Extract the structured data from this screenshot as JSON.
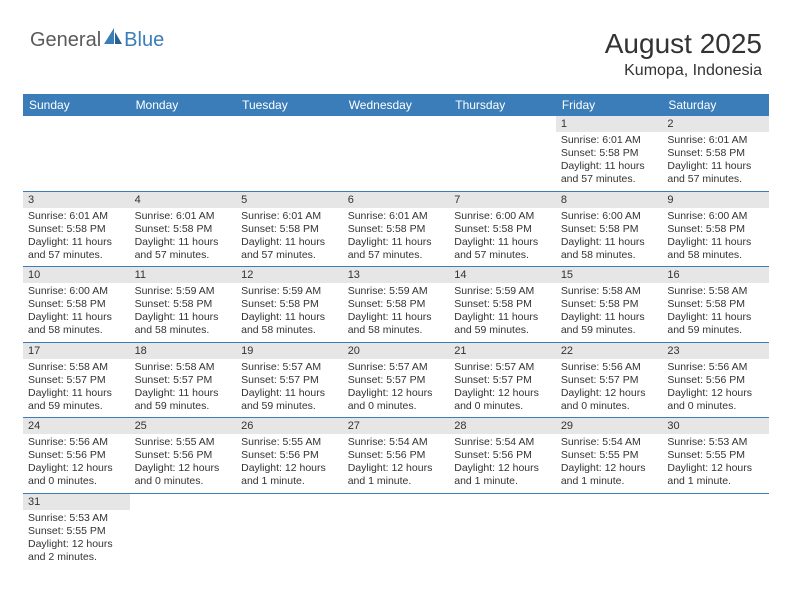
{
  "logo": {
    "part1": "General",
    "part2": "Blue"
  },
  "title": {
    "month": "August 2025",
    "location": "Kumopa, Indonesia"
  },
  "colors": {
    "header_bg": "#3a7db8",
    "header_text": "#ffffff",
    "daynum_bg": "#e6e6e6",
    "border": "#3a7db8",
    "text": "#333333",
    "logo_gray": "#5a5a5a",
    "logo_blue": "#3a7db8"
  },
  "weekdays": [
    "Sunday",
    "Monday",
    "Tuesday",
    "Wednesday",
    "Thursday",
    "Friday",
    "Saturday"
  ],
  "weeks": [
    [
      null,
      null,
      null,
      null,
      null,
      {
        "n": "1",
        "sr": "Sunrise: 6:01 AM",
        "ss": "Sunset: 5:58 PM",
        "dl": "Daylight: 11 hours and 57 minutes."
      },
      {
        "n": "2",
        "sr": "Sunrise: 6:01 AM",
        "ss": "Sunset: 5:58 PM",
        "dl": "Daylight: 11 hours and 57 minutes."
      }
    ],
    [
      {
        "n": "3",
        "sr": "Sunrise: 6:01 AM",
        "ss": "Sunset: 5:58 PM",
        "dl": "Daylight: 11 hours and 57 minutes."
      },
      {
        "n": "4",
        "sr": "Sunrise: 6:01 AM",
        "ss": "Sunset: 5:58 PM",
        "dl": "Daylight: 11 hours and 57 minutes."
      },
      {
        "n": "5",
        "sr": "Sunrise: 6:01 AM",
        "ss": "Sunset: 5:58 PM",
        "dl": "Daylight: 11 hours and 57 minutes."
      },
      {
        "n": "6",
        "sr": "Sunrise: 6:01 AM",
        "ss": "Sunset: 5:58 PM",
        "dl": "Daylight: 11 hours and 57 minutes."
      },
      {
        "n": "7",
        "sr": "Sunrise: 6:00 AM",
        "ss": "Sunset: 5:58 PM",
        "dl": "Daylight: 11 hours and 57 minutes."
      },
      {
        "n": "8",
        "sr": "Sunrise: 6:00 AM",
        "ss": "Sunset: 5:58 PM",
        "dl": "Daylight: 11 hours and 58 minutes."
      },
      {
        "n": "9",
        "sr": "Sunrise: 6:00 AM",
        "ss": "Sunset: 5:58 PM",
        "dl": "Daylight: 11 hours and 58 minutes."
      }
    ],
    [
      {
        "n": "10",
        "sr": "Sunrise: 6:00 AM",
        "ss": "Sunset: 5:58 PM",
        "dl": "Daylight: 11 hours and 58 minutes."
      },
      {
        "n": "11",
        "sr": "Sunrise: 5:59 AM",
        "ss": "Sunset: 5:58 PM",
        "dl": "Daylight: 11 hours and 58 minutes."
      },
      {
        "n": "12",
        "sr": "Sunrise: 5:59 AM",
        "ss": "Sunset: 5:58 PM",
        "dl": "Daylight: 11 hours and 58 minutes."
      },
      {
        "n": "13",
        "sr": "Sunrise: 5:59 AM",
        "ss": "Sunset: 5:58 PM",
        "dl": "Daylight: 11 hours and 58 minutes."
      },
      {
        "n": "14",
        "sr": "Sunrise: 5:59 AM",
        "ss": "Sunset: 5:58 PM",
        "dl": "Daylight: 11 hours and 59 minutes."
      },
      {
        "n": "15",
        "sr": "Sunrise: 5:58 AM",
        "ss": "Sunset: 5:58 PM",
        "dl": "Daylight: 11 hours and 59 minutes."
      },
      {
        "n": "16",
        "sr": "Sunrise: 5:58 AM",
        "ss": "Sunset: 5:58 PM",
        "dl": "Daylight: 11 hours and 59 minutes."
      }
    ],
    [
      {
        "n": "17",
        "sr": "Sunrise: 5:58 AM",
        "ss": "Sunset: 5:57 PM",
        "dl": "Daylight: 11 hours and 59 minutes."
      },
      {
        "n": "18",
        "sr": "Sunrise: 5:58 AM",
        "ss": "Sunset: 5:57 PM",
        "dl": "Daylight: 11 hours and 59 minutes."
      },
      {
        "n": "19",
        "sr": "Sunrise: 5:57 AM",
        "ss": "Sunset: 5:57 PM",
        "dl": "Daylight: 11 hours and 59 minutes."
      },
      {
        "n": "20",
        "sr": "Sunrise: 5:57 AM",
        "ss": "Sunset: 5:57 PM",
        "dl": "Daylight: 12 hours and 0 minutes."
      },
      {
        "n": "21",
        "sr": "Sunrise: 5:57 AM",
        "ss": "Sunset: 5:57 PM",
        "dl": "Daylight: 12 hours and 0 minutes."
      },
      {
        "n": "22",
        "sr": "Sunrise: 5:56 AM",
        "ss": "Sunset: 5:57 PM",
        "dl": "Daylight: 12 hours and 0 minutes."
      },
      {
        "n": "23",
        "sr": "Sunrise: 5:56 AM",
        "ss": "Sunset: 5:56 PM",
        "dl": "Daylight: 12 hours and 0 minutes."
      }
    ],
    [
      {
        "n": "24",
        "sr": "Sunrise: 5:56 AM",
        "ss": "Sunset: 5:56 PM",
        "dl": "Daylight: 12 hours and 0 minutes."
      },
      {
        "n": "25",
        "sr": "Sunrise: 5:55 AM",
        "ss": "Sunset: 5:56 PM",
        "dl": "Daylight: 12 hours and 0 minutes."
      },
      {
        "n": "26",
        "sr": "Sunrise: 5:55 AM",
        "ss": "Sunset: 5:56 PM",
        "dl": "Daylight: 12 hours and 1 minute."
      },
      {
        "n": "27",
        "sr": "Sunrise: 5:54 AM",
        "ss": "Sunset: 5:56 PM",
        "dl": "Daylight: 12 hours and 1 minute."
      },
      {
        "n": "28",
        "sr": "Sunrise: 5:54 AM",
        "ss": "Sunset: 5:56 PM",
        "dl": "Daylight: 12 hours and 1 minute."
      },
      {
        "n": "29",
        "sr": "Sunrise: 5:54 AM",
        "ss": "Sunset: 5:55 PM",
        "dl": "Daylight: 12 hours and 1 minute."
      },
      {
        "n": "30",
        "sr": "Sunrise: 5:53 AM",
        "ss": "Sunset: 5:55 PM",
        "dl": "Daylight: 12 hours and 1 minute."
      }
    ],
    [
      {
        "n": "31",
        "sr": "Sunrise: 5:53 AM",
        "ss": "Sunset: 5:55 PM",
        "dl": "Daylight: 12 hours and 2 minutes."
      },
      null,
      null,
      null,
      null,
      null,
      null
    ]
  ]
}
